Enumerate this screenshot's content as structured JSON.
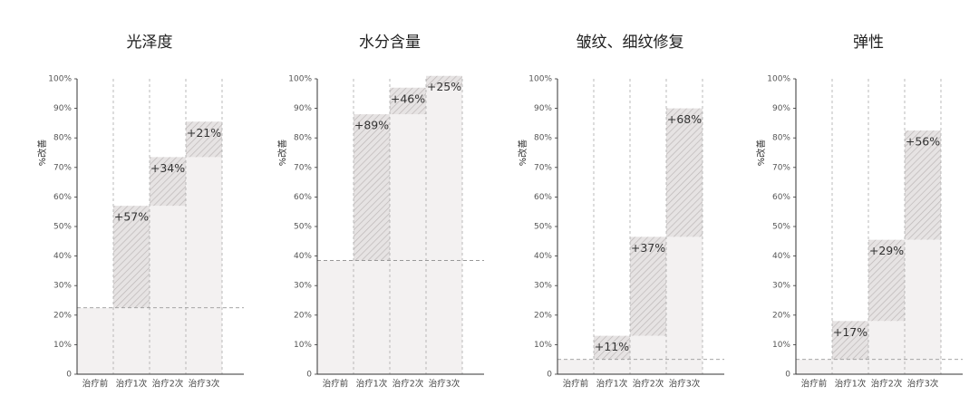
{
  "chart_data": [
    {
      "type": "step-bar",
      "title": "光泽度",
      "y_label": "%改善",
      "categories": [
        "治疗前",
        "治疗1次",
        "治疗2次",
        "治疗3次"
      ],
      "values": [
        22.5,
        57,
        73.5,
        85.5
      ],
      "annotations": [
        null,
        "+57%",
        "+34%",
        "+21%"
      ],
      "annotation_colors": [
        null,
        "#c0392b",
        "#222222",
        "#222222"
      ],
      "ylim": [
        0,
        100
      ],
      "yticks": [
        0,
        {
          "value": 10,
          "label": "10%"
        },
        {
          "value": 20,
          "label": "20%"
        },
        {
          "value": 30,
          "label": "30%"
        },
        {
          "value": 40,
          "label": "40%"
        },
        {
          "value": 50,
          "label": "50%"
        },
        {
          "value": 60,
          "label": "60%"
        },
        {
          "value": 70,
          "label": "70%"
        },
        {
          "value": 80,
          "label": "80%"
        },
        {
          "value": 90,
          "label": "90%"
        },
        {
          "value": 100,
          "label": "100%"
        }
      ]
    },
    {
      "type": "step-bar",
      "title": "水分含量",
      "y_label": "%改善",
      "categories": [
        "治疗前",
        "治疗1次",
        "治疗2次",
        "治疗3次"
      ],
      "values": [
        38.5,
        88,
        97,
        101
      ],
      "annotations": [
        null,
        "+89%",
        "+46%",
        "+25%"
      ],
      "annotation_colors": [
        null,
        "#c0392b",
        "#222222",
        "#222222"
      ],
      "ylim": [
        0,
        100
      ],
      "yticks": [
        0,
        {
          "value": 10,
          "label": "10%"
        },
        {
          "value": 20,
          "label": "20%"
        },
        {
          "value": 30,
          "label": "30%"
        },
        {
          "value": 40,
          "label": "40%"
        },
        {
          "value": 50,
          "label": "50%"
        },
        {
          "value": 60,
          "label": "60%"
        },
        {
          "value": 70,
          "label": "70%"
        },
        {
          "value": 80,
          "label": "80%"
        },
        {
          "value": 90,
          "label": "90%"
        },
        {
          "value": 100,
          "label": "100%"
        }
      ]
    },
    {
      "type": "step-bar",
      "title": "皱纹、细纹修复",
      "y_label": "%改善",
      "categories": [
        "治疗前",
        "治疗1次",
        "治疗2次",
        "治疗3次"
      ],
      "values": [
        5,
        13,
        46.5,
        90
      ],
      "annotations": [
        null,
        "+11%",
        "+37%",
        "+68%"
      ],
      "annotation_colors": [
        null,
        "#222222",
        "#c0392b",
        "#c0392b"
      ],
      "ylim": [
        0,
        100
      ],
      "yticks": [
        0,
        {
          "value": 10,
          "label": "10%"
        },
        {
          "value": 20,
          "label": "20%"
        },
        {
          "value": 30,
          "label": "30%"
        },
        {
          "value": 40,
          "label": "40%"
        },
        {
          "value": 50,
          "label": "50%"
        },
        {
          "value": 60,
          "label": "60%"
        },
        {
          "value": 70,
          "label": "70%"
        },
        {
          "value": 80,
          "label": "80%"
        },
        {
          "value": 90,
          "label": "90%"
        },
        {
          "value": 100,
          "label": "100%"
        }
      ]
    },
    {
      "type": "step-bar",
      "title": "弹性",
      "y_label": "%改善",
      "categories": [
        "治疗前",
        "治疗1次",
        "治疗2次",
        "治疗3次"
      ],
      "values": [
        5,
        18,
        45.5,
        82.5
      ],
      "annotations": [
        null,
        "+17%",
        "+29%",
        "+56%"
      ],
      "annotation_colors": [
        null,
        "#222222",
        "#c0392b",
        "#c0392b"
      ],
      "ylim": [
        0,
        100
      ],
      "yticks": [
        0,
        {
          "value": 10,
          "label": "10%"
        },
        {
          "value": 20,
          "label": "20%"
        },
        {
          "value": 30,
          "label": "30%"
        },
        {
          "value": 40,
          "label": "40%"
        },
        {
          "value": 50,
          "label": "50%"
        },
        {
          "value": 60,
          "label": "60%"
        },
        {
          "value": 70,
          "label": "70%"
        },
        {
          "value": 80,
          "label": "80%"
        },
        {
          "value": 90,
          "label": "90%"
        },
        {
          "value": 100,
          "label": "100%"
        }
      ]
    }
  ]
}
